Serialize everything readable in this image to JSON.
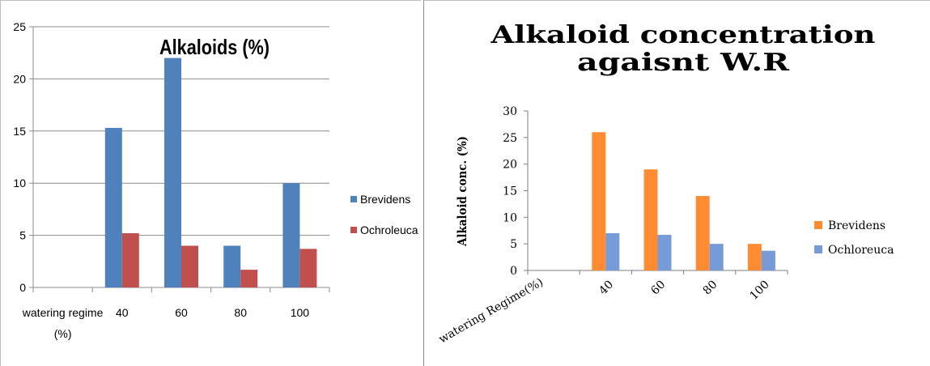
{
  "chart_data": [
    {
      "type": "bar",
      "title": "Alkaloids (%)",
      "xlabel": "",
      "ylabel": "",
      "categories": [
        "watering regime (%)",
        "40",
        "60",
        "80",
        "100"
      ],
      "series": [
        {
          "name": "Brevidens",
          "values": [
            null,
            15.3,
            22.0,
            4.0,
            10.0
          ]
        },
        {
          "name": "Ochroleuca",
          "values": [
            null,
            5.2,
            4.0,
            1.7,
            3.7
          ]
        }
      ],
      "ylim": [
        0,
        25
      ],
      "yticks": [
        0,
        5,
        10,
        15,
        20,
        25
      ],
      "grid": true,
      "legend": "right",
      "colors": [
        "#4f81bd",
        "#c0504d"
      ]
    },
    {
      "type": "bar",
      "title": "Alkaloid concentration agaisnt W.R",
      "xlabel": "",
      "ylabel": "Alkaloid conc. (%)",
      "categories": [
        "watering Regime(%)",
        "40",
        "60",
        "80",
        "100"
      ],
      "series": [
        {
          "name": "Brevidens",
          "values": [
            null,
            26,
            19,
            14,
            5
          ]
        },
        {
          "name": "Ochloreuca",
          "values": [
            null,
            7,
            6.7,
            5,
            3.7
          ]
        }
      ],
      "ylim": [
        0,
        30
      ],
      "yticks": [
        0,
        5,
        10,
        15,
        20,
        25,
        30
      ],
      "grid": false,
      "legend": "right",
      "colors": [
        "#ff8c33",
        "#779ad9"
      ]
    }
  ]
}
